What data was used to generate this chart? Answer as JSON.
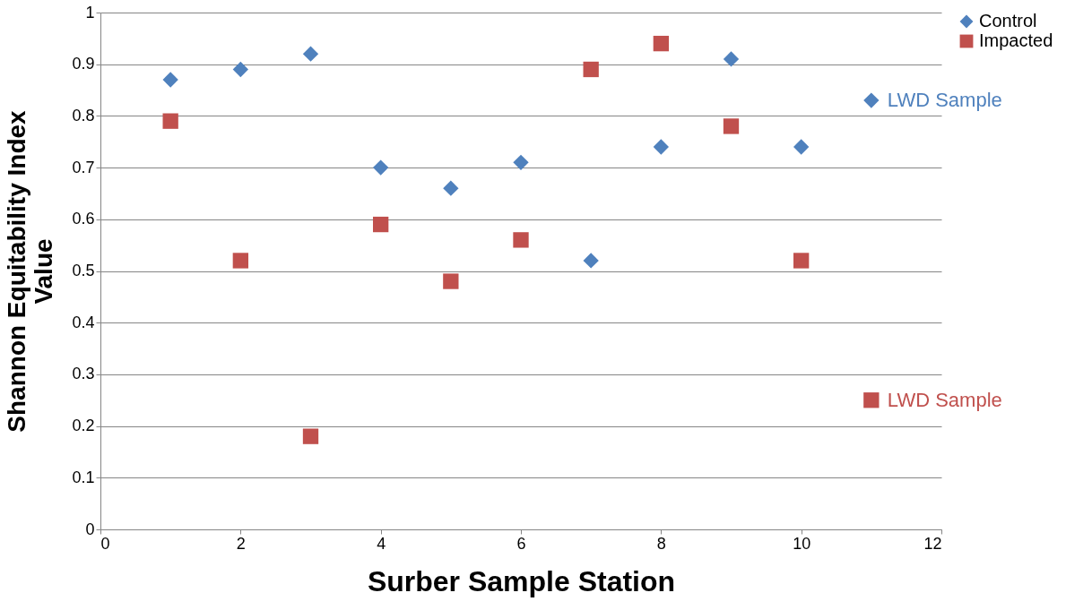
{
  "chart_data": {
    "type": "scatter",
    "xlabel": "Surber Sample Station",
    "ylabel": "Shannon Equitability Index Value",
    "xlim": [
      0,
      12
    ],
    "xticks": [
      0,
      2,
      4,
      6,
      8,
      10,
      12
    ],
    "ylim": [
      0,
      1
    ],
    "yticks": [
      0,
      0.1,
      0.2,
      0.3,
      0.4,
      0.5,
      0.6,
      0.7,
      0.8,
      0.9,
      1
    ],
    "grid": "y",
    "legend": "right",
    "x": [
      1,
      2,
      3,
      4,
      5,
      6,
      7,
      8,
      9,
      10,
      11
    ],
    "series": [
      {
        "name": "Control",
        "color": "#4f81bd",
        "marker": "diamond",
        "values": [
          0.87,
          0.89,
          0.92,
          0.7,
          0.66,
          0.71,
          0.52,
          0.74,
          0.91,
          0.74,
          0.83
        ]
      },
      {
        "name": "Impacted",
        "color": "#c0504d",
        "marker": "square",
        "values": [
          0.79,
          0.52,
          0.18,
          0.59,
          0.48,
          0.56,
          0.89,
          0.94,
          0.78,
          0.52,
          0.25
        ]
      }
    ],
    "annotations": [
      {
        "text": "LWD Sample",
        "x": 11,
        "y": 0.83
      },
      {
        "text": "LWD Sample",
        "x": 11,
        "y": 0.25
      }
    ]
  }
}
